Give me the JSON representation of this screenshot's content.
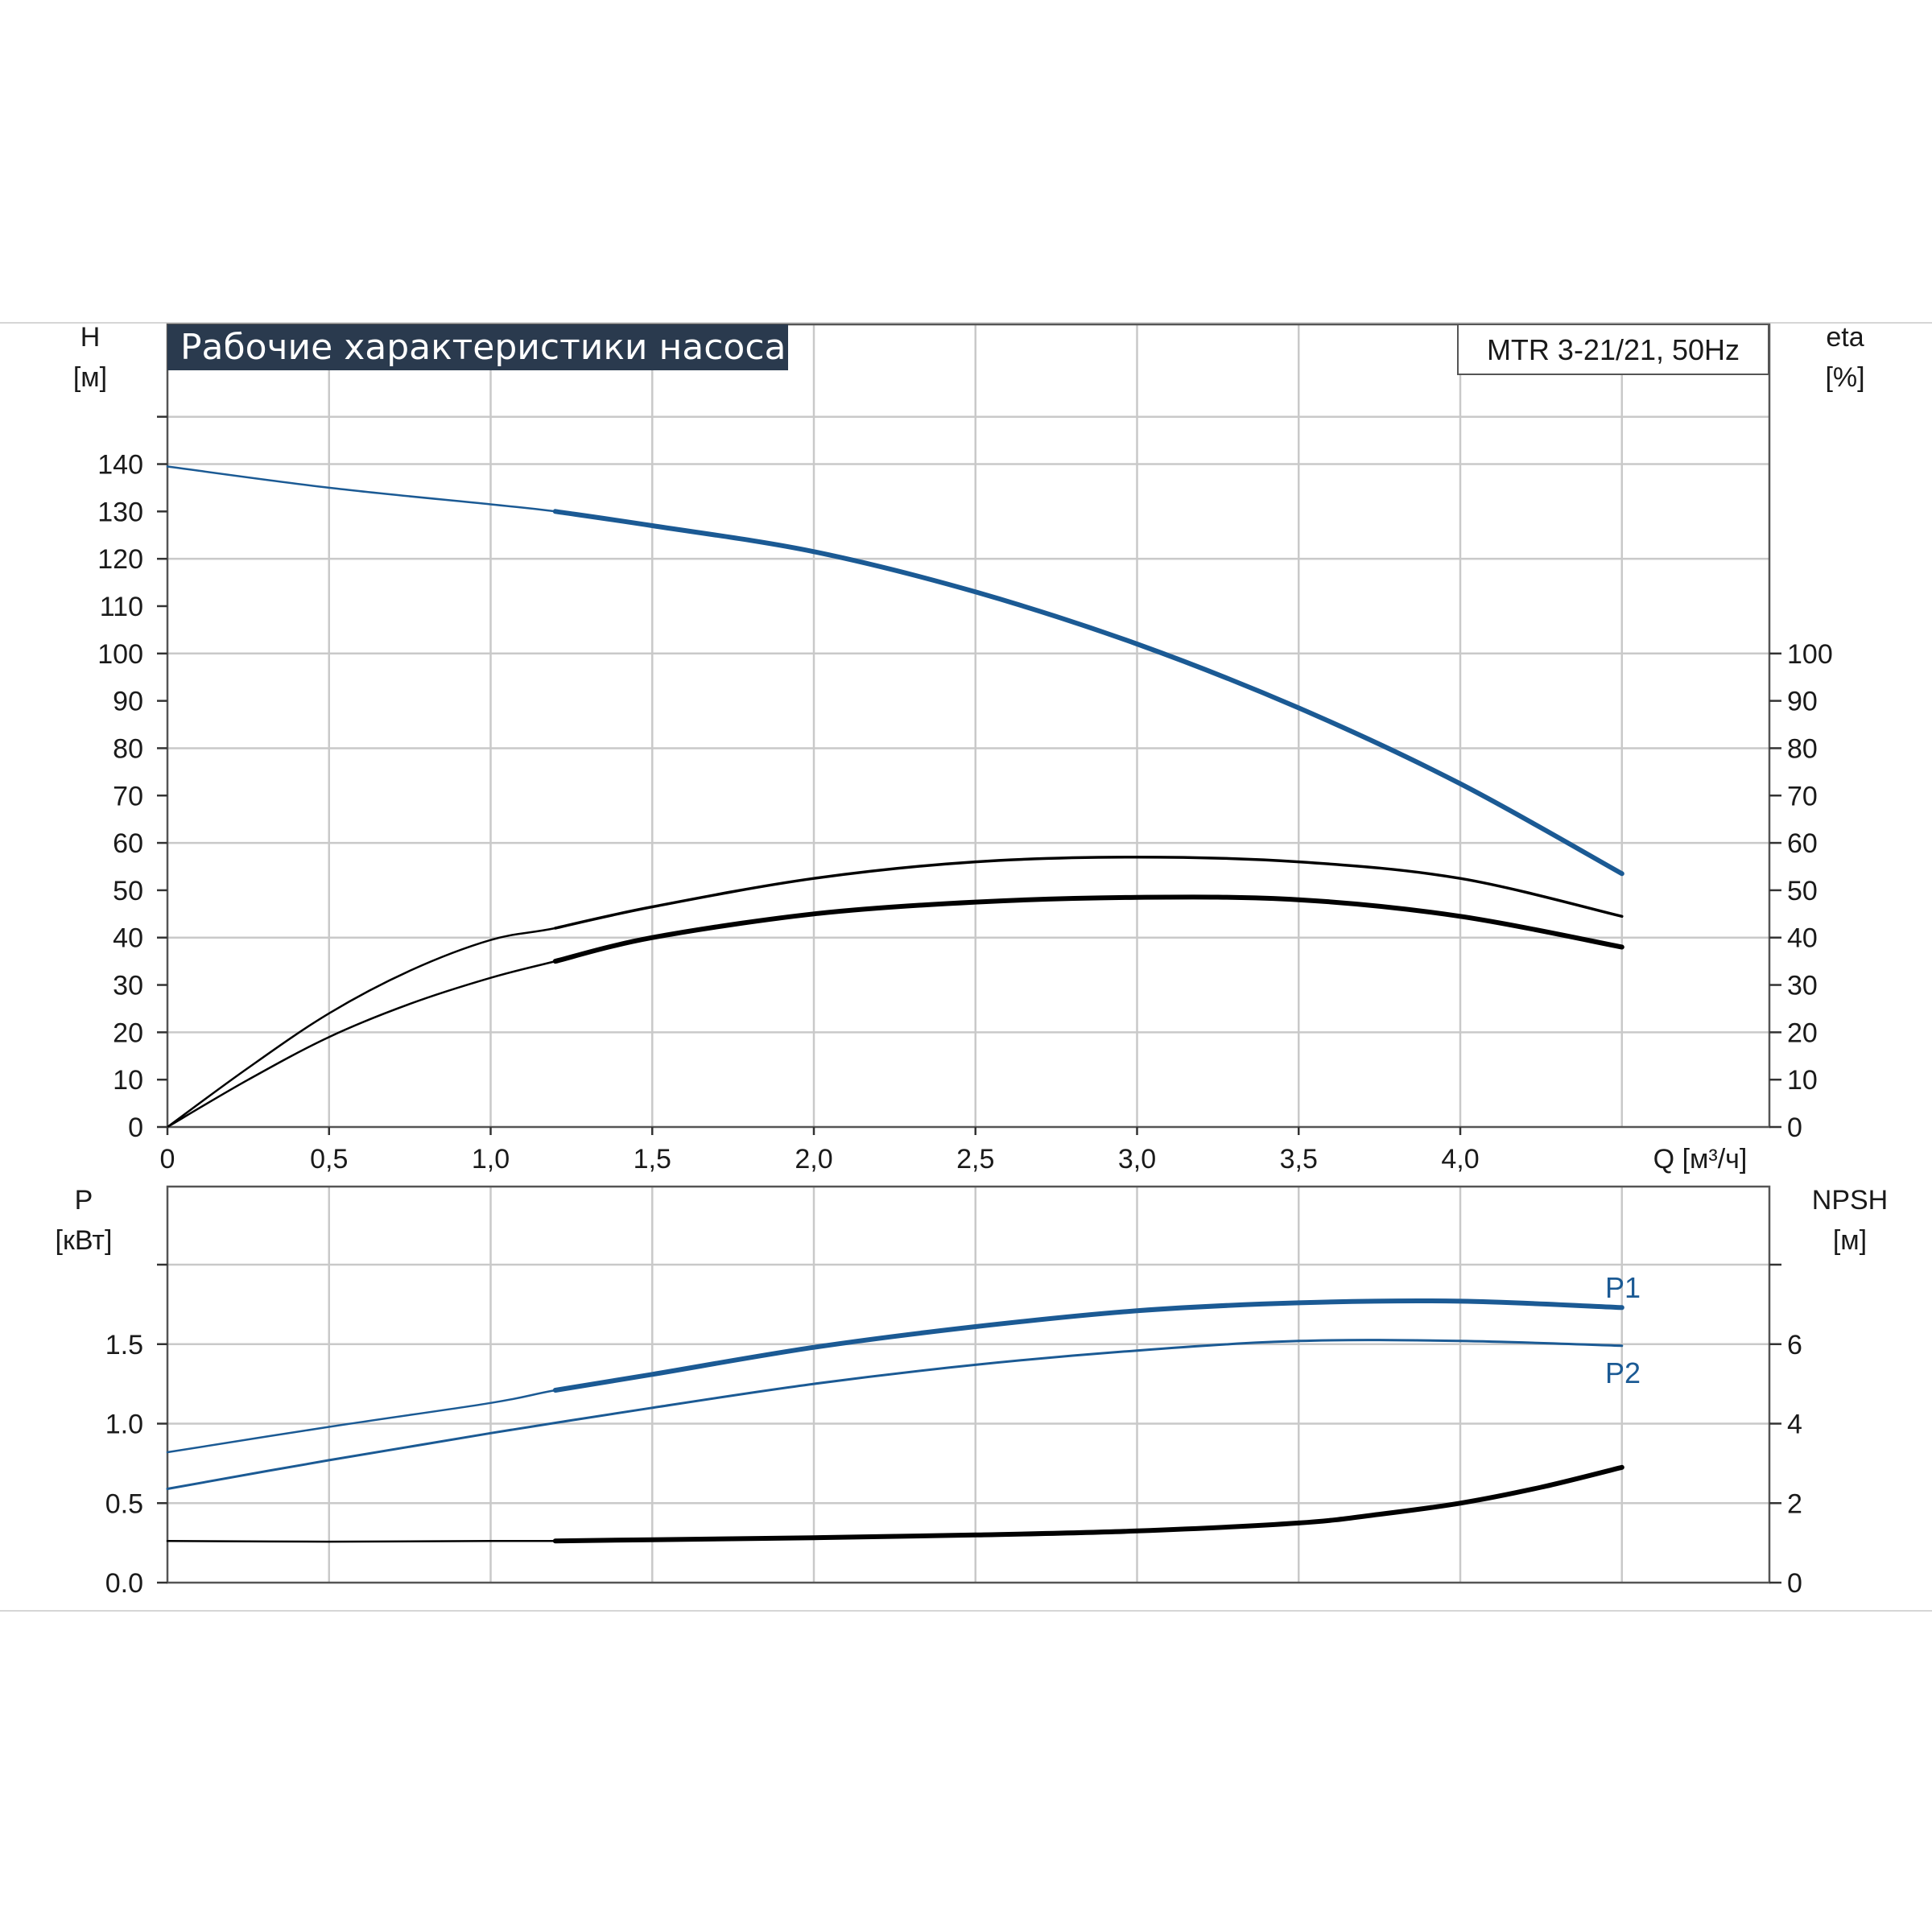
{
  "chart_data": [
    {
      "type": "line",
      "panel": "performance",
      "title": "Рабочие характеристики насоса",
      "model_label": "MTR 3-21/21, 50Hz",
      "xlabel": "Q [м³/ч]",
      "ylabel": [
        "H",
        "[м]"
      ],
      "y2label": [
        "eta",
        "[%]"
      ],
      "xlim": [
        0,
        5
      ],
      "ylim": [
        0,
        140
      ],
      "y2lim": [
        0,
        100
      ],
      "x_ticks": [
        "0",
        "0,5",
        "1,0",
        "1,5",
        "2,0",
        "2,5",
        "3,0",
        "3,5",
        "4,0"
      ],
      "y_ticks": [
        "0",
        "10",
        "20",
        "30",
        "40",
        "50",
        "60",
        "70",
        "80",
        "90",
        "100",
        "110",
        "120",
        "130",
        "140"
      ],
      "y2_ticks": [
        "0",
        "10",
        "20",
        "30",
        "40",
        "50",
        "60",
        "70",
        "80",
        "90",
        "100"
      ],
      "grid": true,
      "series": [
        {
          "axis": "left",
          "color": "#1b5a94",
          "x": [
            0,
            0.5,
            1.0,
            1.2,
            1.5,
            2.0,
            2.5,
            3.0,
            3.5,
            4.0,
            4.5
          ],
          "y": [
            139.5,
            135,
            131.5,
            130,
            127,
            121.5,
            113,
            102,
            88.5,
            72.5,
            53.5
          ]
        },
        {
          "axis": "right",
          "color": "#000000",
          "x": [
            0,
            0.25,
            0.5,
            0.75,
            1.0,
            1.2,
            1.5,
            2.0,
            2.5,
            3.0,
            3.5,
            4.0,
            4.5
          ],
          "y": [
            0,
            12.5,
            24,
            33,
            39.5,
            42,
            46.5,
            52.5,
            56,
            57,
            56,
            52.5,
            44.5
          ]
        },
        {
          "axis": "right",
          "color": "#000000",
          "x": [
            0,
            0.25,
            0.5,
            0.75,
            1.0,
            1.2,
            1.5,
            2.0,
            2.5,
            3.0,
            3.5,
            4.0,
            4.5
          ],
          "y": [
            0,
            10,
            19,
            26,
            31.5,
            35,
            40,
            45,
            47.5,
            48.5,
            48,
            44.5,
            38
          ]
        }
      ]
    },
    {
      "type": "line",
      "panel": "power",
      "xlabel": "",
      "ylabel": [
        "P",
        "[кВт]"
      ],
      "y2label": [
        "NPSH",
        "[м]"
      ],
      "xlim": [
        0,
        5
      ],
      "ylim": [
        0,
        2.0
      ],
      "y2lim": [
        0,
        8
      ],
      "y_ticks": [
        "0.0",
        "0.5",
        "1.0",
        "1.5"
      ],
      "y2_ticks": [
        "0",
        "2",
        "4",
        "6"
      ],
      "grid": true,
      "series": [
        {
          "name": "P1",
          "axis": "left",
          "color": "#1b5a94",
          "x": [
            0,
            0.5,
            1.0,
            1.2,
            1.5,
            2.0,
            2.5,
            3.0,
            3.5,
            4.0,
            4.5
          ],
          "y": [
            0.82,
            0.98,
            1.13,
            1.21,
            1.31,
            1.48,
            1.61,
            1.71,
            1.76,
            1.77,
            1.73
          ]
        },
        {
          "name": "P2",
          "axis": "left",
          "color": "#1b5a94",
          "x": [
            0,
            0.5,
            1.0,
            1.5,
            2.0,
            2.5,
            3.0,
            3.5,
            4.0,
            4.5
          ],
          "y": [
            0.59,
            0.77,
            0.94,
            1.1,
            1.25,
            1.37,
            1.46,
            1.52,
            1.52,
            1.49
          ]
        },
        {
          "axis": "right",
          "color": "#000000",
          "x": [
            0,
            0.5,
            1.0,
            1.2,
            1.5,
            2.0,
            2.5,
            3.0,
            3.5,
            3.75,
            4.0,
            4.25,
            4.5
          ],
          "y": [
            1.05,
            1.03,
            1.05,
            1.05,
            1.08,
            1.13,
            1.2,
            1.3,
            1.5,
            1.72,
            2.0,
            2.4,
            2.9
          ]
        }
      ]
    }
  ]
}
